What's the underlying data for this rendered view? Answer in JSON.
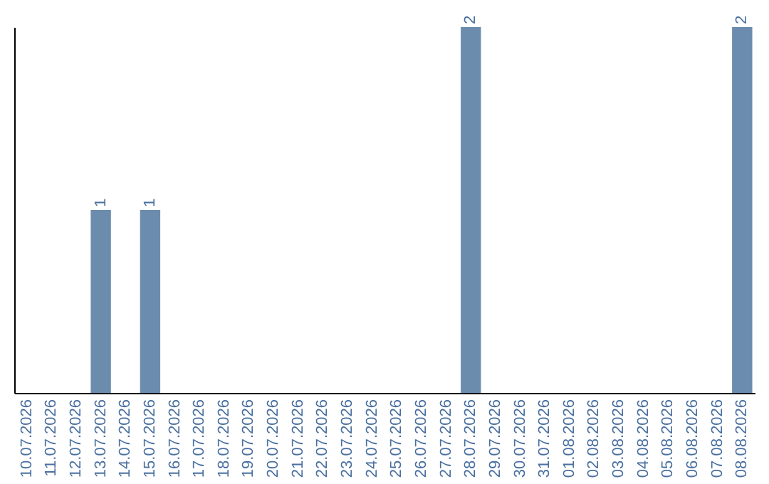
{
  "chart_data": {
    "type": "bar",
    "categories": [
      "10.07.2026",
      "11.07.2026",
      "12.07.2026",
      "13.07.2026",
      "14.07.2026",
      "15.07.2026",
      "16.07.2026",
      "17.07.2026",
      "18.07.2026",
      "19.07.2026",
      "20.07.2026",
      "21.07.2026",
      "22.07.2026",
      "23.07.2026",
      "24.07.2026",
      "25.07.2026",
      "26.07.2026",
      "27.07.2026",
      "28.07.2026",
      "29.07.2026",
      "30.07.2026",
      "31.07.2026",
      "01.08.2026",
      "02.08.2026",
      "03.08.2026",
      "04.08.2026",
      "05.08.2026",
      "06.08.2026",
      "07.08.2026",
      "08.08.2026"
    ],
    "values": [
      0,
      0,
      0,
      1,
      0,
      1,
      0,
      0,
      0,
      0,
      0,
      0,
      0,
      0,
      0,
      0,
      0,
      0,
      2,
      0,
      0,
      0,
      0,
      0,
      0,
      0,
      0,
      0,
      0,
      2
    ],
    "value_labels": [
      null,
      null,
      null,
      "1",
      null,
      "1",
      null,
      null,
      null,
      null,
      null,
      null,
      null,
      null,
      null,
      null,
      null,
      null,
      "2",
      null,
      null,
      null,
      null,
      null,
      null,
      null,
      null,
      null,
      null,
      "2"
    ],
    "color": "#6b8cad",
    "grid": false
  }
}
